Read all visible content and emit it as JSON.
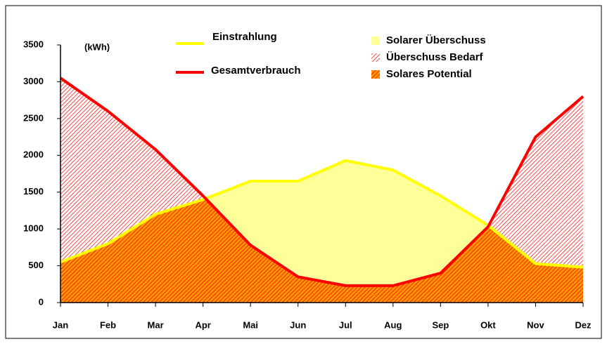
{
  "chart_data": {
    "type": "area",
    "unit_label": "(kWh)",
    "categories": [
      "Jan",
      "Feb",
      "Mar",
      "Apr",
      "Mai",
      "Jun",
      "Jul",
      "Aug",
      "Sep",
      "Okt",
      "Nov",
      "Dez"
    ],
    "series": [
      {
        "name": "Einstrahlung",
        "color": "#ffff00",
        "values": [
          550,
          800,
          1200,
          1400,
          1650,
          1650,
          1930,
          1800,
          1450,
          1050,
          530,
          480
        ]
      },
      {
        "name": "Gesamtverbrauch",
        "color": "#ff0000",
        "values": [
          3050,
          2600,
          2080,
          1450,
          780,
          350,
          230,
          230,
          400,
          1030,
          2250,
          2800
        ]
      }
    ],
    "areas": [
      {
        "name": "Solarer Überschuss",
        "color": "#ffff99"
      },
      {
        "name": "Überschuss Bedarf",
        "color": "#ff0000"
      },
      {
        "name": "Solares Potential",
        "color": "#ff9900"
      }
    ],
    "ylim": [
      0,
      3500
    ],
    "yticks": [
      0,
      500,
      1000,
      1500,
      2000,
      2500,
      3000,
      3500
    ],
    "grid": false
  }
}
